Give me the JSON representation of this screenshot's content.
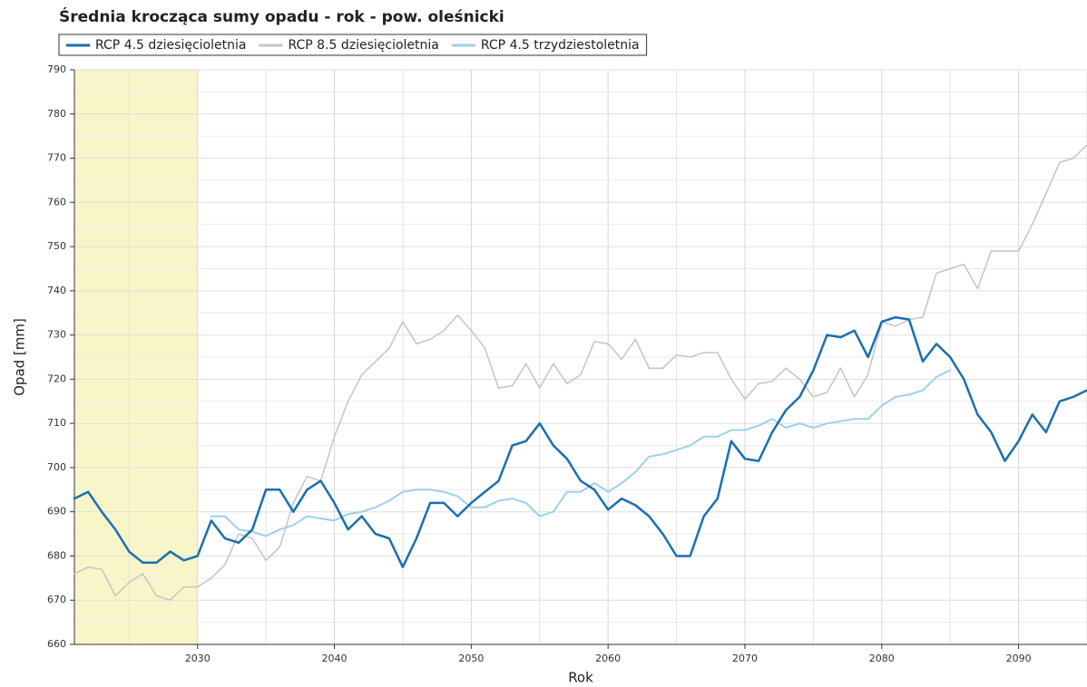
{
  "chart_data": {
    "type": "line",
    "title": "Średnia krocząca sumy opadu - rok - pow. oleśnicki",
    "x_label": "Rok",
    "y_label": "Opad [mm]",
    "x": [
      2021,
      2022,
      2023,
      2024,
      2025,
      2026,
      2027,
      2028,
      2029,
      2030,
      2031,
      2032,
      2033,
      2034,
      2035,
      2036,
      2037,
      2038,
      2039,
      2040,
      2041,
      2042,
      2043,
      2044,
      2045,
      2046,
      2047,
      2048,
      2049,
      2050,
      2051,
      2052,
      2053,
      2054,
      2055,
      2056,
      2057,
      2058,
      2059,
      2060,
      2061,
      2062,
      2063,
      2064,
      2065,
      2066,
      2067,
      2068,
      2069,
      2070,
      2071,
      2072,
      2073,
      2074,
      2075,
      2076,
      2077,
      2078,
      2079,
      2080,
      2081,
      2082,
      2083,
      2084,
      2085,
      2086,
      2087,
      2088,
      2089,
      2090,
      2091,
      2092,
      2093,
      2094,
      2095
    ],
    "series": [
      {
        "name": "RCP 4.5 dziesięcioletnia",
        "color": "#1a6faf",
        "width": 2.5,
        "values": [
          693,
          694.5,
          690,
          686,
          681,
          678.5,
          678.5,
          681,
          679,
          680,
          688,
          684,
          683,
          686,
          695,
          695,
          690,
          695,
          697,
          692,
          686,
          689,
          685,
          684,
          677.5,
          684,
          692,
          692,
          689,
          692,
          694.5,
          697,
          705,
          706,
          710,
          705,
          702,
          697,
          695,
          690.5,
          693,
          691.5,
          689,
          685,
          680,
          680,
          689,
          693,
          706,
          702,
          701.5,
          708,
          713,
          716,
          722,
          730,
          729.5,
          731,
          725,
          733,
          734,
          733.5,
          724,
          728,
          725,
          720,
          712,
          708,
          701.5,
          706,
          712,
          708,
          715,
          716,
          717.5
        ]
      },
      {
        "name": "RCP 8.5 dziesięcioletnia",
        "color": "#c4c4c4",
        "width": 1.5,
        "values": [
          676,
          677.5,
          677,
          671,
          674,
          676,
          671,
          670,
          673,
          673,
          675,
          678,
          685,
          684,
          679,
          682,
          692,
          698,
          697,
          707,
          715,
          721,
          724,
          727,
          733,
          728,
          729,
          731,
          734.5,
          731,
          727,
          718,
          718.5,
          723.5,
          718,
          723.5,
          719,
          721,
          728.5,
          728,
          724.5,
          729,
          722.5,
          722.5,
          725.5,
          725,
          726,
          726,
          720,
          715.5,
          719,
          719.5,
          722.5,
          720,
          716,
          717,
          722.5,
          716,
          721,
          733,
          732,
          733.5,
          734,
          744,
          745,
          746,
          740.5,
          749,
          749,
          749,
          755,
          762,
          769,
          770,
          773
        ]
      },
      {
        "name": "RCP 4.5 trzydziestoletnia",
        "color": "#9dd0ec",
        "width": 2,
        "values": [
          null,
          null,
          null,
          null,
          null,
          null,
          null,
          null,
          null,
          null,
          689,
          689,
          686,
          685.5,
          684.5,
          686,
          687,
          689,
          688.5,
          688,
          689.5,
          690,
          691,
          692.5,
          694.5,
          695,
          695,
          694.5,
          693.5,
          691,
          691,
          692.5,
          693,
          692,
          689,
          690,
          694.5,
          694.5,
          696.5,
          694.5,
          696.5,
          699,
          702.5,
          703,
          704,
          705,
          707,
          707,
          708.5,
          708.5,
          709.5,
          711,
          709,
          710,
          709,
          710,
          710.5,
          711,
          711,
          714,
          716,
          716.5,
          717.5,
          720.5,
          722,
          null,
          null,
          null,
          null,
          null,
          null,
          null,
          null,
          null,
          null
        ]
      }
    ],
    "xlim": [
      2021,
      2095
    ],
    "xticks": [
      2030,
      2040,
      2050,
      2060,
      2070,
      2080,
      2090
    ],
    "minor_xticks": [
      2025,
      2035,
      2045,
      2055,
      2065,
      2075,
      2085,
      2095
    ],
    "ylim": [
      660,
      790
    ],
    "yticks": [
      660,
      670,
      680,
      690,
      700,
      710,
      720,
      730,
      740,
      750,
      760,
      770,
      780,
      790
    ],
    "minor_yticks": [
      665,
      675,
      685,
      695,
      705,
      715,
      725,
      735,
      745,
      755,
      765,
      775,
      785
    ],
    "highlight": {
      "range": [
        2021,
        2030
      ],
      "color": "#f8f6c8"
    },
    "grid": true,
    "legend": "top"
  }
}
